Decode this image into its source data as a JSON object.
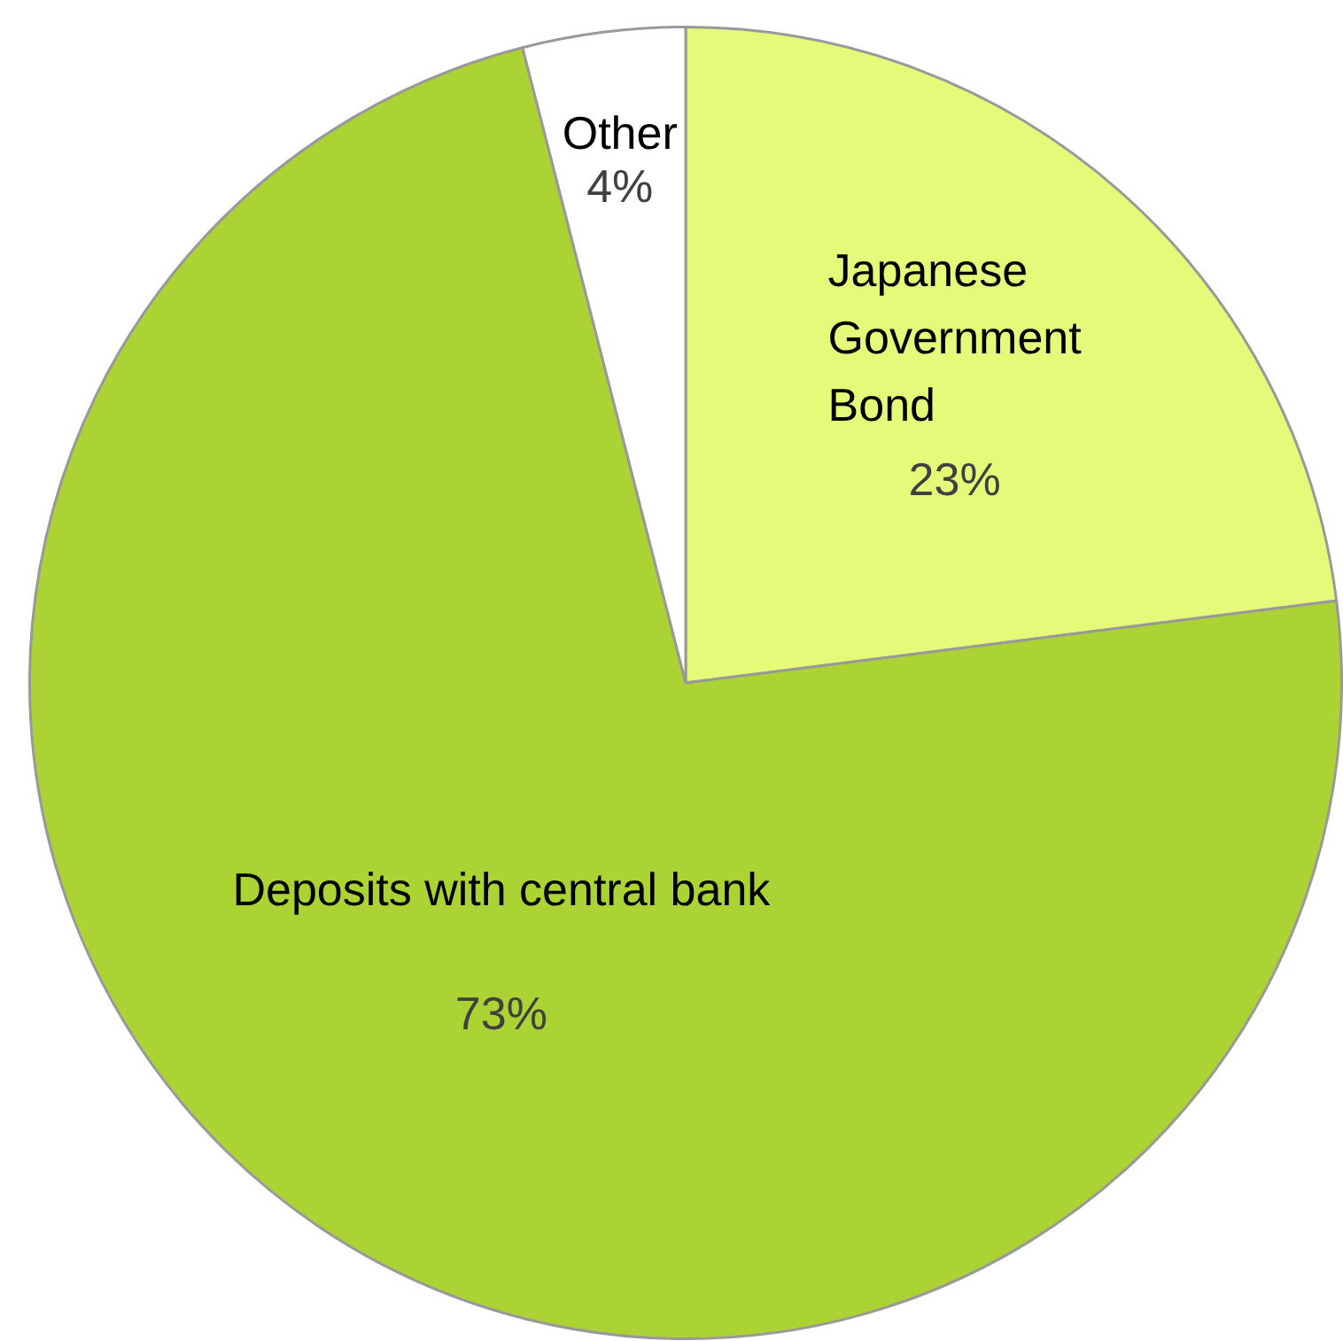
{
  "chart_data": {
    "type": "pie",
    "categories": [
      "Japanese Government Bond",
      "Deposits with central bank",
      "Other"
    ],
    "values": [
      23,
      73,
      4
    ],
    "value_labels": [
      "23%",
      "73%",
      "4%"
    ],
    "colors": [
      "#e6fa7a",
      "#acd334",
      "#ffffff"
    ],
    "legend": false
  }
}
